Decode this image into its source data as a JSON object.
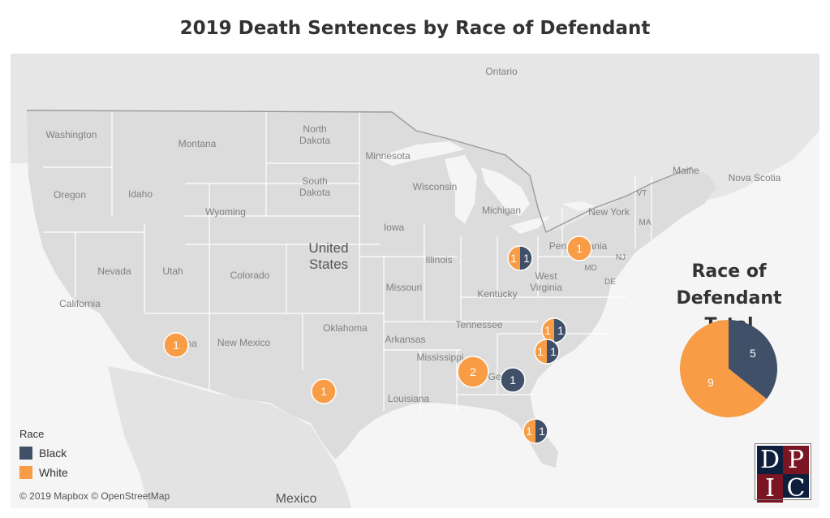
{
  "title": "2019 Death Sentences by Race of Defendant",
  "colors": {
    "black": "#3f5068",
    "white": "#f89c45"
  },
  "map_labels": {
    "ontario": "Ontario",
    "washington": "Washington",
    "montana": "Montana",
    "north_dakota": "North\nDakota",
    "minnesota": "Minnesota",
    "south_dakota": "South\nDakota",
    "wisconsin": "Wisconsin",
    "oregon": "Oregon",
    "idaho": "Idaho",
    "wyoming": "Wyoming",
    "michigan": "Michigan",
    "iowa": "Iowa",
    "nevada": "Nevada",
    "utah": "Utah",
    "colorado": "Colorado",
    "united_states": "United\nStates",
    "illinois": "Illinois",
    "missouri": "Missouri",
    "california": "California",
    "kentucky": "Kentucky",
    "west_virginia": "West\nVirginia",
    "oklahoma": "Oklahoma",
    "arizona": "Arizona",
    "new_mexico": "New Mexico",
    "arkansas": "Arkansas",
    "tennessee": "Tennessee",
    "mississippi": "Mississippi",
    "louisiana": "Louisiana",
    "mexico": "Mexico",
    "maine": "Maine",
    "nova_scotia": "Nova Scotia",
    "new_york": "New York",
    "vt": "VT",
    "ma": "MA",
    "pennsylvania": "Pennsylvania",
    "nj": "NJ",
    "md": "MD",
    "de": "DE",
    "georgia": "Georgia"
  },
  "markers": [
    {
      "state": "Arizona",
      "white": 1,
      "black": 0
    },
    {
      "state": "Texas",
      "white": 1,
      "black": 0
    },
    {
      "state": "Alabama",
      "white": 2,
      "black": 0
    },
    {
      "state": "Georgia",
      "white": 0,
      "black": 1
    },
    {
      "state": "Ohio",
      "white": 1,
      "black": 1
    },
    {
      "state": "Pennsylvania",
      "white": 1,
      "black": 0
    },
    {
      "state": "North Carolina",
      "white": 1,
      "black": 1
    },
    {
      "state": "South Carolina",
      "white": 1,
      "black": 1
    },
    {
      "state": "Florida",
      "white": 1,
      "black": 1
    }
  ],
  "pie": {
    "title_line1": "Race of Defendant",
    "title_line2": "Total",
    "black": 5,
    "white": 9
  },
  "legend": {
    "title": "Race",
    "items": [
      {
        "label": "Black",
        "color": "#3f5068"
      },
      {
        "label": "White",
        "color": "#f89c45"
      }
    ]
  },
  "attribution": "© 2019 Mapbox © OpenStreetMap",
  "logo": {
    "letters": [
      "D",
      "P",
      "I",
      "C"
    ]
  }
}
